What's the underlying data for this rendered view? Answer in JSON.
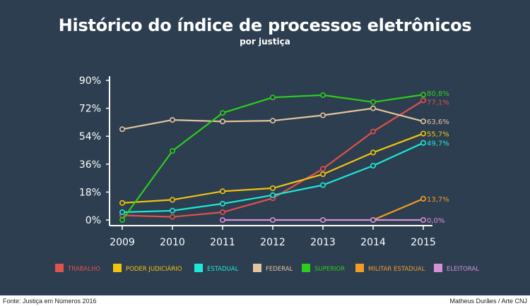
{
  "title": "Histórico do índice de processos eletrônicos",
  "subtitle": "por justiça",
  "footer": {
    "source": "Fonte: Justiça em Números 2016",
    "credit": "Matheus Durães / Arte CNJ"
  },
  "colors": {
    "background": "#2c3e50",
    "axis": "#ffffff"
  },
  "chart_data": {
    "type": "line",
    "categories": [
      "2009",
      "2010",
      "2011",
      "2012",
      "2013",
      "2014",
      "2015"
    ],
    "ylim": [
      0,
      90
    ],
    "yticks": [
      "0%",
      "18%",
      "36%",
      "54%",
      "72%",
      "90%"
    ],
    "ytick_values": [
      0,
      18,
      36,
      54,
      72,
      90
    ],
    "grid": false,
    "legend_position": "bottom",
    "series": [
      {
        "name": "TRABALHO",
        "color": "#e0524a",
        "values": [
          3,
          2,
          5,
          14,
          33,
          57,
          77.1
        ],
        "end_label": "77,1%"
      },
      {
        "name": "PODER JUDICIÁRIO",
        "color": "#f1c40f",
        "values": [
          11,
          13,
          18.5,
          20.5,
          29.5,
          43.5,
          55.7
        ],
        "end_label": "55,7%"
      },
      {
        "name": "ESTADUAL",
        "color": "#1de9d6",
        "values": [
          5,
          6,
          10.5,
          16,
          22.5,
          35,
          49.7
        ],
        "end_label": "49,7%"
      },
      {
        "name": "FEDERAL",
        "color": "#e5c49f",
        "values": [
          58.5,
          64.5,
          63.5,
          64,
          67.5,
          72,
          63.6
        ],
        "end_label": "63,6%"
      },
      {
        "name": "SUPERIOR",
        "color": "#2ecc1b",
        "values": [
          0,
          44.5,
          69,
          79,
          80.5,
          76,
          80.8
        ],
        "end_label": "80,8%"
      },
      {
        "name": "MILITAR ESTADUAL",
        "color": "#f39c25",
        "values": [
          null,
          null,
          null,
          null,
          null,
          0,
          13.7
        ],
        "end_label": "13,7%"
      },
      {
        "name": "ELEITORAL",
        "color": "#d58fd6",
        "values": [
          null,
          null,
          0,
          0,
          0,
          0,
          0
        ],
        "end_label": "0,0%"
      }
    ]
  }
}
